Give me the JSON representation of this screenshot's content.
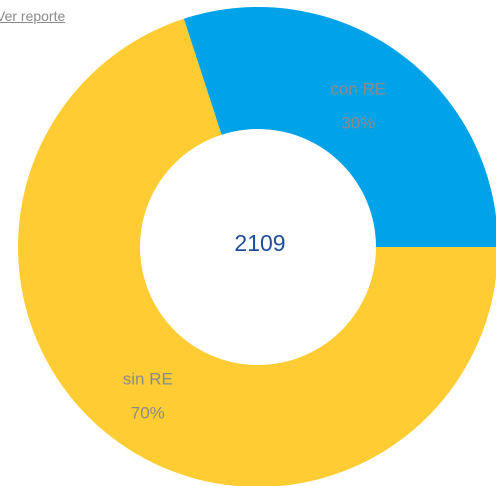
{
  "link": "Ver reporte",
  "chart_data": {
    "type": "donut",
    "center_label": 2109,
    "categories": [
      "con RE",
      "sin RE"
    ],
    "values": [
      30,
      70
    ],
    "value_labels": [
      "30%",
      "70%"
    ],
    "colors": [
      "#00a2e8",
      "#ffcc33"
    ]
  }
}
